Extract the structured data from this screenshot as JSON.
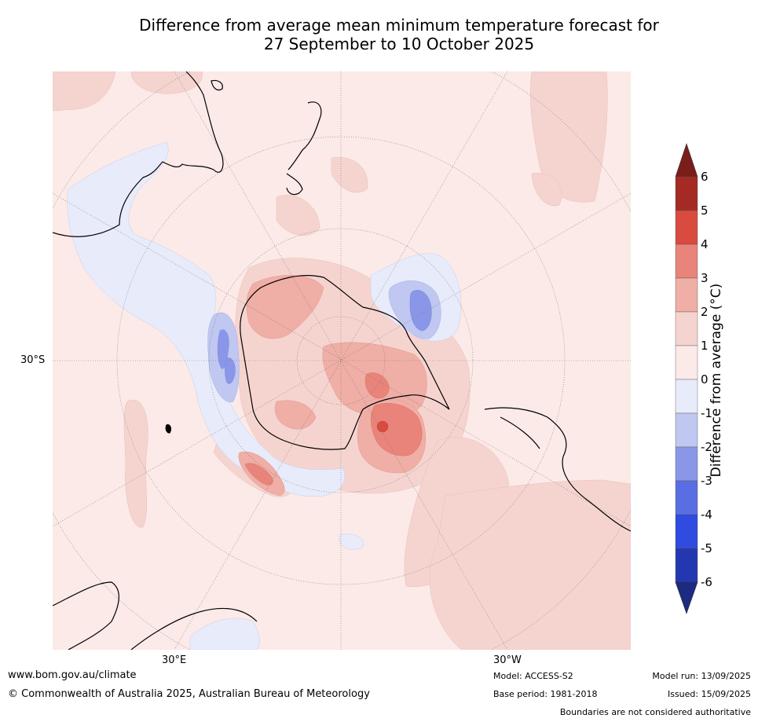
{
  "title_line1": "Difference from average mean minimum temperature forecast for",
  "title_line2": "27 September to 10 October 2025",
  "map": {
    "projection": "south-polar stereographic",
    "graticule": "dotted",
    "lat_label": "30°S",
    "lon_labels": [
      "30°E",
      "30°W"
    ]
  },
  "legend": {
    "title": "Difference from average (°C)",
    "ticks": [
      "6",
      "5",
      "4",
      "3",
      "2",
      "1",
      "0",
      "-1",
      "-2",
      "-3",
      "-4",
      "-5",
      "-6"
    ],
    "bins": [
      {
        "range": "5 to 6",
        "color": "#a52a24"
      },
      {
        "range": "4 to 5",
        "color": "#d94b3f"
      },
      {
        "range": "3 to 4",
        "color": "#e8847a"
      },
      {
        "range": "2 to 3",
        "color": "#efaea6"
      },
      {
        "range": "1 to 2",
        "color": "#f5d4d0"
      },
      {
        "range": "0 to 1",
        "color": "#fbeae7"
      },
      {
        "range": "-1 to 0",
        "color": "#e8ebfa"
      },
      {
        "range": "-2 to -1",
        "color": "#c0c7f0"
      },
      {
        "range": "-3 to -2",
        "color": "#8a97e8"
      },
      {
        "range": "-4 to -3",
        "color": "#5a6ee3"
      },
      {
        "range": "-5 to -4",
        "color": "#2f4be0"
      },
      {
        "range": "-6 to -5",
        "color": "#2338b0"
      }
    ],
    "over_color": "#7a1e1a",
    "under_color": "#1c2a80"
  },
  "footer": {
    "website": "www.bom.gov.au/climate",
    "copyright": "© Commonwealth of Australia 2025, Australian Bureau of Meteorology",
    "model": "Model: ACCESS-S2",
    "base_period": "Base period: 1981-2018",
    "model_run": "Model run: 13/09/2025",
    "issued": "Issued: 15/09/2025",
    "disclaimer": "Boundaries are not considered authoritative"
  }
}
